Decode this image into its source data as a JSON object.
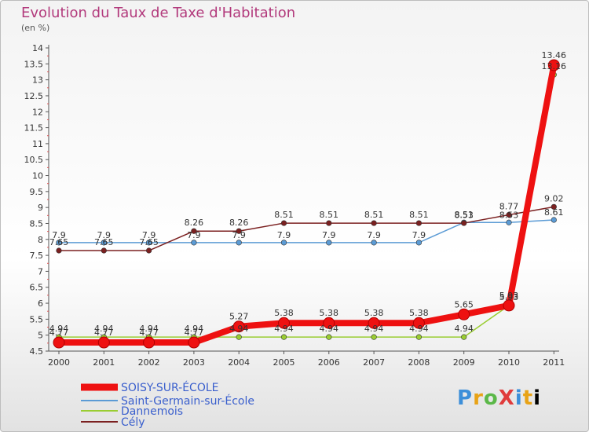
{
  "title": "Evolution du Taux de Taxe d'Habitation",
  "subtitle": "(en %)",
  "logo": "ProXiti",
  "chart_data": {
    "type": "line",
    "x": [
      "2000",
      "2001",
      "2002",
      "2003",
      "2004",
      "2005",
      "2006",
      "2007",
      "2008",
      "2009",
      "2010",
      "2011"
    ],
    "ylim": [
      4.5,
      14
    ],
    "yticks": [
      "4.5",
      "5",
      "5.5",
      "6",
      "6.5",
      "7",
      "7.5",
      "8",
      "8.5",
      "9",
      "9.5",
      "10",
      "10.5",
      "11",
      "11.5",
      "12",
      "12.5",
      "13",
      "13.5",
      "14"
    ],
    "grid": false,
    "legend_position": "bottom-left",
    "series": [
      {
        "name": "Saint-Germain-sur-École",
        "color": "#5b9bd5",
        "values": [
          7.9,
          7.9,
          7.9,
          7.9,
          7.9,
          7.9,
          7.9,
          7.9,
          7.9,
          8.53,
          8.53,
          8.61
        ],
        "labels": [
          "7.9",
          "7.9",
          "7.9",
          "7.9",
          "7.9",
          "7.9",
          "7.9",
          "7.9",
          "7.9",
          "8.53",
          "8.53",
          "8.61"
        ]
      },
      {
        "name": "Dannemois",
        "color": "#9acd32",
        "values": [
          4.94,
          4.94,
          4.94,
          4.94,
          4.94,
          4.94,
          4.94,
          4.94,
          4.94,
          4.94,
          5.93,
          13.16
        ],
        "labels": [
          "4.94",
          "4.94",
          "4.94",
          "4.94",
          "4.94",
          "4.94",
          "4.94",
          "4.94",
          "4.94",
          "4.94",
          "5.93",
          "13.16"
        ]
      },
      {
        "name": "Cély",
        "color": "#7b2020",
        "values": [
          7.65,
          7.65,
          7.65,
          8.26,
          8.26,
          8.51,
          8.51,
          8.51,
          8.51,
          8.51,
          8.77,
          9.02
        ],
        "labels": [
          "7.65",
          "7.65",
          "7.65",
          "8.26",
          "8.26",
          "8.51",
          "8.51",
          "8.51",
          "8.51",
          "8.51",
          "8.77",
          "9.02"
        ]
      },
      {
        "name": "SOISY-SUR-ÉCOLE",
        "color": "#ee1111",
        "values": [
          4.77,
          4.77,
          4.77,
          4.77,
          5.27,
          5.38,
          5.38,
          5.38,
          5.38,
          5.65,
          5.93,
          13.46
        ],
        "labels": [
          "4.77",
          "4.77",
          "4.77",
          "4.77",
          "5.27",
          "5.38",
          "5.38",
          "5.38",
          "5.38",
          "5.65",
          "5.93",
          "13.46"
        ]
      }
    ],
    "legend_order": [
      "SOISY-SUR-ÉCOLE",
      "Saint-Germain-sur-École",
      "Dannemois",
      "Cély"
    ]
  }
}
